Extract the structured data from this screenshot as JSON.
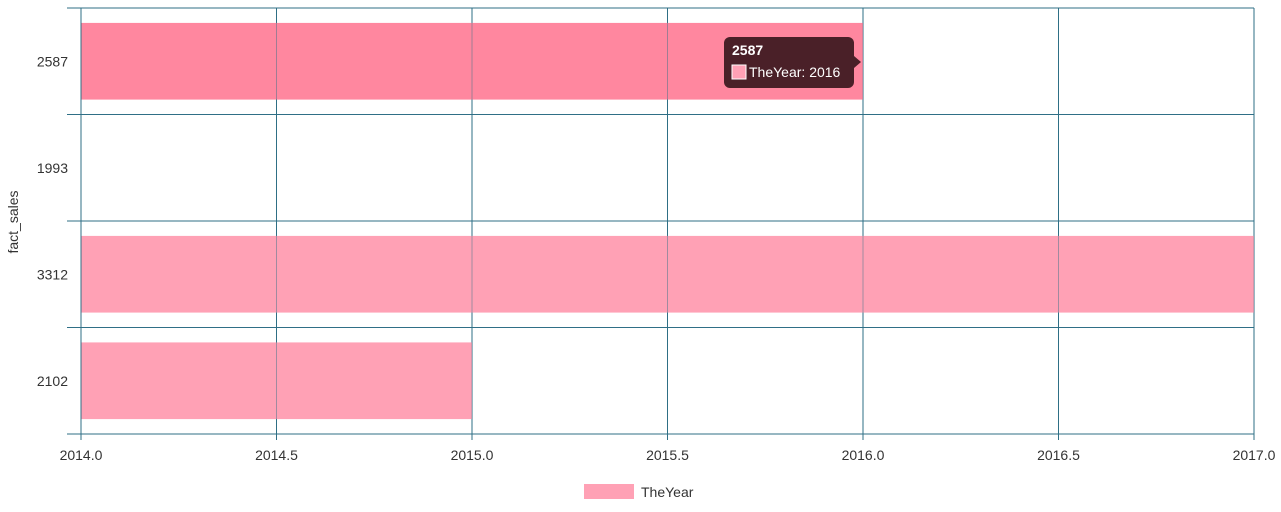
{
  "chart_data": {
    "type": "bar",
    "orientation": "horizontal",
    "categories": [
      "2587",
      "1993",
      "3312",
      "2102"
    ],
    "series": [
      {
        "name": "TheYear",
        "values": [
          2016,
          null,
          2017,
          2015
        ]
      }
    ],
    "xlabel": "",
    "ylabel": "fact_sales",
    "xlim": [
      2014,
      2017
    ],
    "xticks": [
      "2014.0",
      "2014.5",
      "2015.0",
      "2015.5",
      "2016.0",
      "2016.5",
      "2017.0"
    ],
    "grid": true,
    "legend": "bottom",
    "colors": {
      "bar": "#ffa1b5",
      "bar_highlight": "#ff879f",
      "grid": "#2f6f86",
      "tooltip_bg": "#4a2028"
    },
    "tooltip": {
      "title": "2587",
      "label": "TheYear: 2016",
      "category_index": 0
    }
  }
}
